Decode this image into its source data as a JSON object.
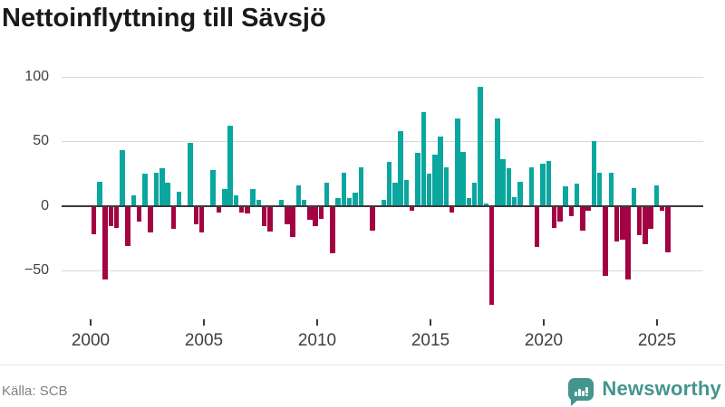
{
  "header": {
    "title": "Nettoinflyttning till Sävsjö"
  },
  "footer": {
    "source": "Källa: SCB",
    "brand_name": "Newsworthy"
  },
  "colors": {
    "positive": "#0aa79f",
    "negative": "#a30342",
    "grid": "#d9d9d9",
    "zero_line": "#3a3a3a",
    "axis_label": "#3f3f3f",
    "title": "#1a1a1a",
    "source_text": "#808080",
    "brand": "#43958e"
  },
  "chart_data": {
    "type": "bar",
    "title": "Nettoinflyttning till Sävsjö",
    "frequency": "quarterly",
    "x_start": "2000Q1",
    "x_end": "2025Q2",
    "x_tick_labels": [
      "2000",
      "2005",
      "2010",
      "2015",
      "2020",
      "2025"
    ],
    "y_tick_labels": [
      "100",
      "50",
      "0",
      "−50"
    ],
    "y_tick_values": [
      100,
      50,
      0,
      -50
    ],
    "ylim": [
      -87,
      100
    ],
    "grid": "horizontal",
    "legend": "none",
    "values": [
      -22,
      19,
      -57,
      -16,
      -17,
      43,
      -31,
      8,
      -12,
      25,
      -21,
      26,
      29,
      18,
      -18,
      11,
      0,
      49,
      -14,
      -21,
      0,
      28,
      -5,
      13,
      62,
      8,
      -5,
      -6,
      13,
      5,
      -16,
      -20,
      0,
      5,
      -14,
      -24,
      16,
      5,
      -11,
      -16,
      -10,
      18,
      -37,
      6,
      26,
      6,
      10,
      30,
      0,
      -19,
      0,
      5,
      34,
      18,
      58,
      20,
      -4,
      41,
      73,
      25,
      40,
      54,
      30,
      -5,
      68,
      42,
      6,
      18,
      92,
      2,
      -77,
      68,
      36,
      29,
      7,
      19,
      0,
      30,
      -32,
      33,
      35,
      -17,
      -12,
      15,
      -8,
      17,
      -19,
      -4,
      50,
      26,
      -54,
      26,
      -28,
      -26,
      -57,
      14,
      -23,
      -30,
      -18,
      16,
      -4,
      -36
    ]
  }
}
